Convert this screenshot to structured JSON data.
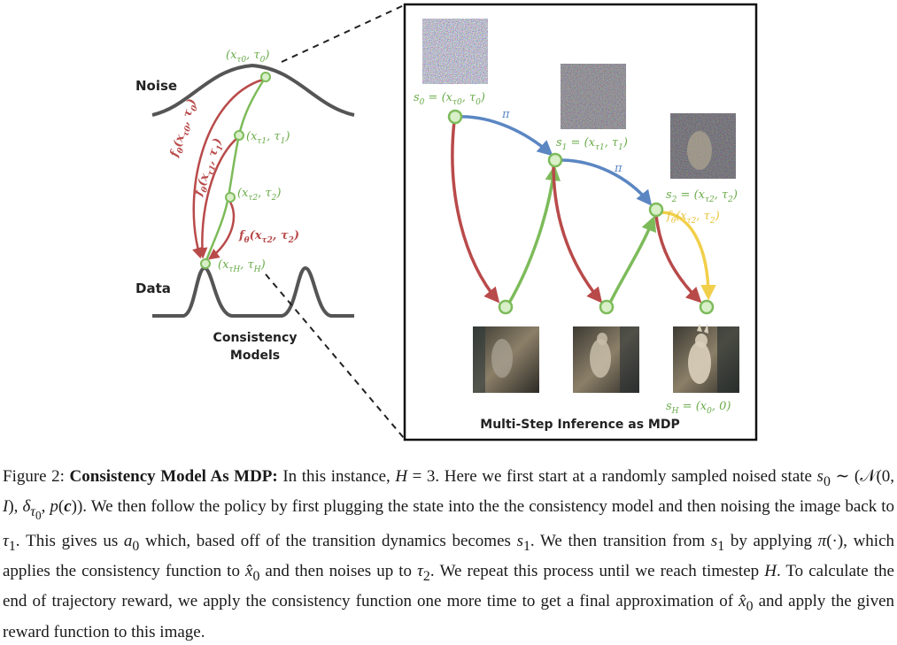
{
  "figure": {
    "left_panel": {
      "noise_label": "Noise",
      "data_label": "Data",
      "caption_line1": "Consistency",
      "caption_line2": "Models"
    },
    "right_panel": {
      "title": "Multi-Step Inference as MDP",
      "policy_symbol": "π"
    },
    "colors": {
      "green": "#7dbb5a",
      "red": "#b94a4a",
      "blue": "#5b86c2",
      "yellow": "#f2cf4a",
      "curve": "#555555"
    }
  },
  "caption": {
    "prefix": "Figure 2:",
    "bold_title": "Consistency Model As MDP:"
  }
}
